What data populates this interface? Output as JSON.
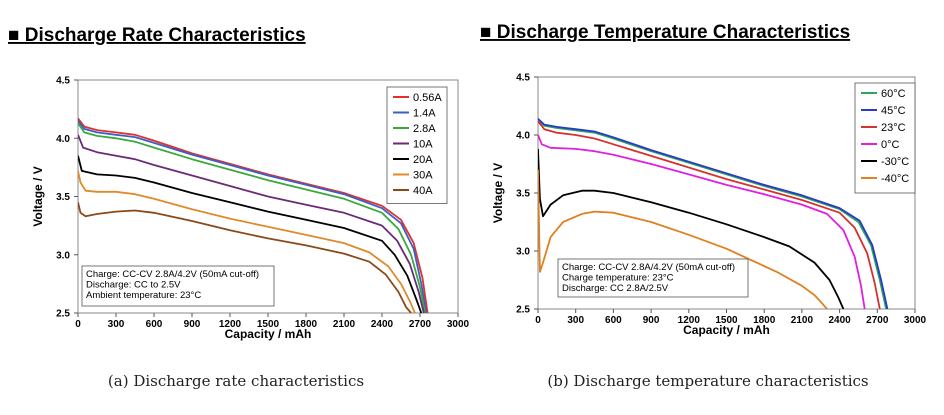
{
  "chart_data": [
    {
      "type": "line",
      "title": "■ Discharge Rate Characteristics",
      "xlabel": "Capacity / mAh",
      "ylabel": "Voltage / V",
      "xlim": [
        0,
        3000
      ],
      "ylim": [
        2.5,
        4.5
      ],
      "xticks": [
        "0",
        "300",
        "600",
        "900",
        "1200",
        "1500",
        "1800",
        "2100",
        "2400",
        "2700",
        "3000"
      ],
      "yticks": [
        "2.5",
        "3.0",
        "3.5",
        "4.0",
        "4.5"
      ],
      "legend_position": "top-right",
      "notes": [
        "Charge: CC-CV 2.8A/4.2V (50mA cut-off)",
        "Discharge: CC to 2.5V",
        "Ambient temperature: 23°C"
      ],
      "caption": "(a) Discharge rate characteristics",
      "series": [
        {
          "name": "0.56A",
          "color": "#e03030",
          "x": [
            0,
            50,
            150,
            300,
            450,
            600,
            900,
            1200,
            1500,
            1800,
            2100,
            2400,
            2550,
            2650,
            2720,
            2760
          ],
          "y": [
            4.17,
            4.1,
            4.07,
            4.05,
            4.03,
            3.98,
            3.87,
            3.78,
            3.69,
            3.61,
            3.53,
            3.42,
            3.3,
            3.1,
            2.8,
            2.5
          ]
        },
        {
          "name": "1.4A",
          "color": "#3a5fc8",
          "x": [
            0,
            50,
            150,
            300,
            450,
            600,
            900,
            1200,
            1500,
            1800,
            2100,
            2400,
            2550,
            2650,
            2710,
            2750
          ],
          "y": [
            4.15,
            4.08,
            4.05,
            4.03,
            4.01,
            3.96,
            3.86,
            3.77,
            3.68,
            3.6,
            3.52,
            3.4,
            3.27,
            3.05,
            2.75,
            2.5
          ]
        },
        {
          "name": "2.8A",
          "color": "#3aa83a",
          "x": [
            0,
            50,
            150,
            300,
            450,
            600,
            900,
            1200,
            1500,
            1800,
            2100,
            2400,
            2530,
            2630,
            2700,
            2740
          ],
          "y": [
            4.13,
            4.05,
            4.02,
            4.0,
            3.97,
            3.92,
            3.82,
            3.73,
            3.64,
            3.56,
            3.48,
            3.36,
            3.22,
            3.0,
            2.72,
            2.5
          ]
        },
        {
          "name": "10A",
          "color": "#6a2a7a",
          "x": [
            0,
            40,
            150,
            300,
            450,
            600,
            900,
            1200,
            1500,
            1800,
            2100,
            2400,
            2520,
            2620,
            2690,
            2730
          ],
          "y": [
            4.03,
            3.92,
            3.88,
            3.85,
            3.82,
            3.77,
            3.68,
            3.59,
            3.5,
            3.43,
            3.36,
            3.25,
            3.12,
            2.92,
            2.68,
            2.5
          ]
        },
        {
          "name": "20A",
          "color": "#000000",
          "x": [
            0,
            30,
            150,
            300,
            450,
            600,
            900,
            1200,
            1500,
            1800,
            2100,
            2400,
            2500,
            2600,
            2670,
            2710
          ],
          "y": [
            3.85,
            3.72,
            3.69,
            3.68,
            3.66,
            3.62,
            3.53,
            3.45,
            3.37,
            3.3,
            3.23,
            3.12,
            3.0,
            2.82,
            2.62,
            2.5
          ]
        },
        {
          "name": "30A",
          "color": "#e08a2a",
          "x": [
            0,
            20,
            60,
            150,
            300,
            450,
            600,
            900,
            1200,
            1500,
            1800,
            2100,
            2300,
            2450,
            2550,
            2620,
            2660
          ],
          "y": [
            3.72,
            3.62,
            3.55,
            3.54,
            3.54,
            3.52,
            3.48,
            3.39,
            3.31,
            3.24,
            3.17,
            3.1,
            3.02,
            2.9,
            2.75,
            2.6,
            2.5
          ]
        },
        {
          "name": "40A",
          "color": "#8a4a1a",
          "x": [
            0,
            20,
            60,
            150,
            300,
            450,
            600,
            900,
            1200,
            1500,
            1800,
            2100,
            2300,
            2430,
            2530,
            2590,
            2630
          ],
          "y": [
            3.45,
            3.36,
            3.33,
            3.35,
            3.37,
            3.38,
            3.36,
            3.29,
            3.21,
            3.14,
            3.08,
            3.01,
            2.94,
            2.83,
            2.68,
            2.55,
            2.5
          ]
        }
      ]
    },
    {
      "type": "line",
      "title": "■ Discharge Temperature Characteristics",
      "xlabel": "Capacity / mAh",
      "ylabel": "Voltage / V",
      "xlim": [
        0,
        3000
      ],
      "ylim": [
        2.5,
        4.5
      ],
      "xticks": [
        "0",
        "300",
        "600",
        "900",
        "1200",
        "1500",
        "1800",
        "2100",
        "2400",
        "2700",
        "3000"
      ],
      "yticks": [
        "2.5",
        "3.0",
        "3.5",
        "4.0",
        "4.5"
      ],
      "legend_position": "top-right",
      "notes": [
        "Charge: CC-CV 2.8A/4.2V (50mA cut-off)",
        "Charge temperature: 23°C",
        "Discharge: CC 2.8A/2.5V"
      ],
      "caption": "(b) Discharge temperature characteristics",
      "series": [
        {
          "name": "60°C",
          "color": "#2aa85a",
          "x": [
            0,
            50,
            150,
            300,
            450,
            600,
            900,
            1200,
            1500,
            1800,
            2100,
            2400,
            2550,
            2650,
            2720,
            2770
          ],
          "y": [
            4.13,
            4.08,
            4.06,
            4.04,
            4.02,
            3.97,
            3.86,
            3.76,
            3.66,
            3.56,
            3.47,
            3.36,
            3.25,
            3.05,
            2.75,
            2.5
          ]
        },
        {
          "name": "45°C",
          "color": "#2a3ac8",
          "x": [
            0,
            50,
            150,
            300,
            450,
            600,
            900,
            1200,
            1500,
            1800,
            2100,
            2400,
            2560,
            2660,
            2730,
            2780
          ],
          "y": [
            4.14,
            4.09,
            4.07,
            4.05,
            4.03,
            3.98,
            3.87,
            3.77,
            3.67,
            3.57,
            3.48,
            3.37,
            3.26,
            3.05,
            2.75,
            2.5
          ]
        },
        {
          "name": "23°C",
          "color": "#d83030",
          "x": [
            0,
            50,
            150,
            300,
            450,
            600,
            900,
            1200,
            1500,
            1800,
            2100,
            2400,
            2520,
            2620,
            2680,
            2720
          ],
          "y": [
            4.12,
            4.05,
            4.02,
            4.0,
            3.97,
            3.92,
            3.82,
            3.72,
            3.62,
            3.53,
            3.44,
            3.33,
            3.2,
            2.98,
            2.72,
            2.5
          ]
        },
        {
          "name": "0°C",
          "color": "#e020e0",
          "x": [
            0,
            30,
            100,
            300,
            450,
            600,
            900,
            1200,
            1500,
            1800,
            2100,
            2300,
            2430,
            2520,
            2570,
            2600
          ],
          "y": [
            4.0,
            3.92,
            3.89,
            3.88,
            3.86,
            3.83,
            3.75,
            3.66,
            3.57,
            3.49,
            3.4,
            3.32,
            3.18,
            2.95,
            2.7,
            2.5
          ]
        },
        {
          "name": "-30°C",
          "color": "#000000",
          "x": [
            0,
            15,
            40,
            100,
            200,
            350,
            450,
            600,
            900,
            1200,
            1500,
            1800,
            2000,
            2200,
            2320,
            2390,
            2430
          ],
          "y": [
            3.88,
            3.45,
            3.3,
            3.4,
            3.48,
            3.52,
            3.52,
            3.5,
            3.42,
            3.33,
            3.23,
            3.12,
            3.04,
            2.9,
            2.75,
            2.6,
            2.5
          ]
        },
        {
          "name": "-40°C",
          "color": "#e08020",
          "x": [
            0,
            15,
            40,
            100,
            200,
            350,
            450,
            600,
            900,
            1200,
            1500,
            1700,
            1900,
            2100,
            2200,
            2260,
            2300
          ],
          "y": [
            3.7,
            2.82,
            2.9,
            3.12,
            3.25,
            3.32,
            3.34,
            3.33,
            3.25,
            3.14,
            3.02,
            2.92,
            2.82,
            2.7,
            2.62,
            2.55,
            2.5
          ]
        }
      ]
    }
  ]
}
